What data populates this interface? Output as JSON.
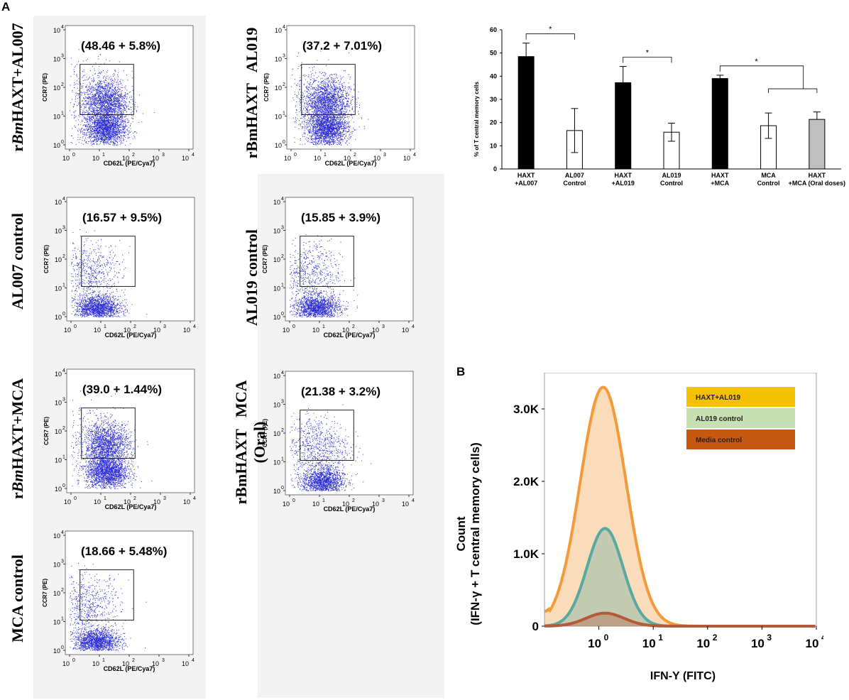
{
  "panels": {
    "a": "A",
    "b": "B"
  },
  "flow_axis": {
    "x_label": "CD62L (PE/Cya7)",
    "y_label": "CCR7 (PE)",
    "x_ticks": [
      "10",
      "10",
      "10",
      "10",
      "10"
    ],
    "x_exps": [
      "0",
      "1",
      "2",
      "3",
      "4"
    ],
    "y_ticks": [
      "10",
      "10",
      "10",
      "10",
      "10"
    ],
    "y_exps": [
      "0",
      "1",
      "2",
      "3",
      "4"
    ]
  },
  "flow_plots": [
    {
      "id": "haxt-al007",
      "label_html": "r<i>Bm</i>HAXT+AL007",
      "label_lines": [
        "rBmHAXT+AL007"
      ],
      "percent": "(48.46 + 5.8%)",
      "pattern": "high"
    },
    {
      "id": "haxt-al019",
      "label_lines": [
        "rBmHAXT   AL019"
      ],
      "percent": "(37.2 + 7.01%)",
      "pattern": "high"
    },
    {
      "id": "al007-control",
      "label_lines": [
        "AL007 control"
      ],
      "percent": "(16.57 + 9.5%)",
      "pattern": "low"
    },
    {
      "id": "al019-control",
      "label_lines": [
        "AL019 control"
      ],
      "percent": "(15.85 + 3.9%)",
      "pattern": "low"
    },
    {
      "id": "haxt-mca",
      "label_lines": [
        "rBmHAXT+MCA"
      ],
      "percent": "(39.0 + 1.44%)",
      "pattern": "high"
    },
    {
      "id": "haxt-mca-oral",
      "label_lines": [
        "rBmHAXT   MCA",
        "(Oral)"
      ],
      "percent": "(21.38 + 3.2%)",
      "pattern": "mid"
    },
    {
      "id": "mca-control",
      "label_lines": [
        "MCA control"
      ],
      "percent": "(18.66 + 5.48%)",
      "pattern": "low"
    }
  ],
  "colors": {
    "dots": "#2b2bd6",
    "bar_fill": "#000000",
    "bar_gray": "#bfbfbf",
    "hist_orange": "#f39a3a",
    "hist_teal": "#5aa9a0",
    "hist_brown": "#b4593a",
    "legend1": "#f5c000",
    "legend2": "#c6e0b4",
    "legend3": "#c65911"
  },
  "chart_data": [
    {
      "type": "bar",
      "title": "",
      "ylabel": "% of T central memory cells",
      "ylim": [
        0,
        60
      ],
      "yticks": [
        "0",
        "10",
        "20",
        "30",
        "40",
        "50",
        "60"
      ],
      "categories": [
        "HAXT +AL007",
        "AL007 Control",
        "HAXT +AL019",
        "AL019 Control",
        "HAXT +MCA",
        "MCA Control",
        "HAXT +MCA (Oral doses)"
      ],
      "category_lines": [
        [
          "HAXT",
          "+AL007"
        ],
        [
          "AL007",
          "Control"
        ],
        [
          "HAXT",
          "+AL019"
        ],
        [
          "AL019",
          "Control"
        ],
        [
          "HAXT",
          "+MCA"
        ],
        [
          "MCA",
          "Control"
        ],
        [
          "HAXT",
          "+MCA (Oral doses)"
        ]
      ],
      "values": [
        48.46,
        16.57,
        37.2,
        15.85,
        39.0,
        18.66,
        21.38
      ],
      "errors": [
        5.8,
        9.5,
        7.01,
        3.9,
        1.44,
        5.48,
        3.2
      ],
      "fills": [
        "black",
        "white",
        "black",
        "white",
        "black",
        "white",
        "gray"
      ],
      "significance": [
        {
          "from": 0,
          "to": 1,
          "label": "*"
        },
        {
          "from": 2,
          "to": 3,
          "label": "*"
        },
        {
          "from": 4,
          "to": [
            5,
            6
          ],
          "label": "*"
        }
      ]
    },
    {
      "type": "area",
      "title": "",
      "xlabel": "IFN-Y (FITC)",
      "ylabel": "Count",
      "ylabel2": "(IFN-γ + T central memory cells)",
      "xlim": [
        0.1,
        10000
      ],
      "ylim": [
        0,
        3500
      ],
      "yticks": [
        "0",
        "1.0K",
        "2.0K",
        "3.0K"
      ],
      "xticks": [
        "10",
        "10",
        "10",
        "10",
        "10"
      ],
      "xexps": [
        "0",
        "1",
        "2",
        "3",
        "4"
      ],
      "legend": [
        "HAXT+AL019",
        "AL019 control",
        "Media control"
      ],
      "series": [
        {
          "name": "HAXT+AL019",
          "peak_x": 1.2,
          "peak": 3300,
          "width": 0.42
        },
        {
          "name": "AL019 control",
          "peak_x": 1.3,
          "peak": 1350,
          "width": 0.33
        },
        {
          "name": "Media control",
          "peak_x": 1.3,
          "peak": 180,
          "width": 0.35
        }
      ]
    }
  ]
}
